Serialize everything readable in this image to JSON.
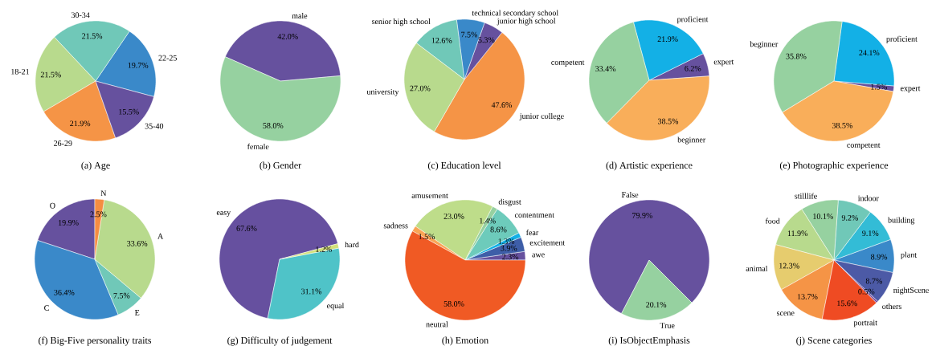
{
  "chart_data": [
    {
      "type": "pie",
      "title": "(a) Age",
      "categories": [
        "22-25",
        "30-34",
        "18-21",
        "26-29",
        "35-40"
      ],
      "values": [
        19.7,
        21.5,
        21.5,
        21.9,
        15.5
      ],
      "value_labels": [
        "19.7%",
        "21.5%",
        "21.5%",
        "21.9%",
        "15.5%"
      ],
      "colors": [
        "#3a89c9",
        "#70c8b8",
        "#b8da8d",
        "#f59446",
        "#66519e"
      ]
    },
    {
      "type": "pie",
      "title": "(b) Gender",
      "categories": [
        "male",
        "female"
      ],
      "values": [
        42.0,
        58.0
      ],
      "value_labels": [
        "42.0%",
        "58.0%"
      ],
      "colors": [
        "#66519e",
        "#96d1a0"
      ]
    },
    {
      "type": "pie",
      "title": "(c) Education level",
      "categories": [
        "junior college",
        "junior high school",
        "technical secondary school",
        "senior high school",
        "university"
      ],
      "values": [
        47.6,
        5.3,
        7.5,
        12.6,
        27.0
      ],
      "value_labels": [
        "47.6%",
        "5.3%",
        "7.5%",
        "12.6%",
        "27.0%"
      ],
      "colors": [
        "#f59446",
        "#66519e",
        "#3a89c9",
        "#70c8b8",
        "#b8da8d"
      ]
    },
    {
      "type": "pie",
      "title": "(d) Artistic experience",
      "categories": [
        "expert",
        "proficient",
        "competent",
        "beginner"
      ],
      "values": [
        6.2,
        21.9,
        33.4,
        38.5
      ],
      "value_labels": [
        "6.2%",
        "21.9%",
        "33.4%",
        "38.5%"
      ],
      "colors": [
        "#66519e",
        "#13b0e6",
        "#96d1a0",
        "#f9ae5a"
      ]
    },
    {
      "type": "pie",
      "title": "(e) Photographic experience",
      "categories": [
        "expert",
        "proficient",
        "beginner",
        "competent"
      ],
      "values": [
        1.5,
        24.1,
        35.8,
        38.5
      ],
      "value_labels": [
        "1.5%",
        "24.1%",
        "35.8%",
        "38.5%"
      ],
      "colors": [
        "#66519e",
        "#13b0e6",
        "#96d1a0",
        "#f9ae5a"
      ]
    },
    {
      "type": "pie",
      "title": "(f) Big-Five personality traits",
      "categories": [
        "O",
        "C",
        "E",
        "A",
        "N"
      ],
      "values": [
        19.9,
        36.4,
        7.5,
        33.6,
        2.5
      ],
      "value_labels": [
        "19.9%",
        "36.4%",
        "7.5%",
        "33.6%",
        "2.5%"
      ],
      "colors": [
        "#66519e",
        "#3a89c9",
        "#70c8b8",
        "#b8da8d",
        "#f58d42"
      ]
    },
    {
      "type": "pie",
      "title": "(g) Difficulty of judgement",
      "categories": [
        "easy",
        "equal",
        "hard"
      ],
      "values": [
        67.6,
        31.1,
        1.2
      ],
      "value_labels": [
        "67.6%",
        "31.1%",
        "1.2%"
      ],
      "colors": [
        "#66509f",
        "#4fc3c8",
        "#d3e07a"
      ]
    },
    {
      "type": "pie",
      "title": "(h) Emotion",
      "categories": [
        "awe",
        "excitement",
        "fear",
        "contentment",
        "disgust",
        "amusement",
        "sadness",
        "neutral"
      ],
      "values": [
        2.3,
        3.9,
        1.3,
        8.6,
        1.4,
        23.0,
        1.5,
        58.0
      ],
      "value_labels": [
        "2.3%",
        "3.9%",
        "1.3%",
        "8.6%",
        "1.4%",
        "23.0%",
        "1.5%",
        "58.0%"
      ],
      "colors": [
        "#66519e",
        "#3e5ea8",
        "#13b0e6",
        "#6dcbbb",
        "#96d1a0",
        "#bedd8a",
        "#f9a556",
        "#f05a24"
      ]
    },
    {
      "type": "pie",
      "title": "(i) IsObjectEmphasis",
      "categories": [
        "False",
        "True"
      ],
      "values": [
        79.9,
        20.1
      ],
      "value_labels": [
        "79.9%",
        "20.1%"
      ],
      "colors": [
        "#66519e",
        "#96d1a0"
      ]
    },
    {
      "type": "pie",
      "title": "(j) Scene categories",
      "categories": [
        "plant",
        "building",
        "indoor",
        "stilllife",
        "food",
        "animal",
        "scene",
        "portrait",
        "others",
        "nightScene"
      ],
      "values": [
        8.9,
        9.1,
        9.2,
        10.1,
        11.9,
        12.3,
        13.7,
        15.6,
        0.5,
        8.7
      ],
      "value_labels": [
        "8.9%",
        "9.1%",
        "9.2%",
        "10.1%",
        "11.9%",
        "12.3%",
        "13.7%",
        "15.6%",
        "0.5%",
        "8.7%"
      ],
      "colors": [
        "#3a89c9",
        "#33bcd6",
        "#70c8b8",
        "#96d1a0",
        "#b8da8d",
        "#e6cc6e",
        "#f59446",
        "#ef4b23",
        "#7a4fa0",
        "#4c5aa6"
      ]
    }
  ]
}
